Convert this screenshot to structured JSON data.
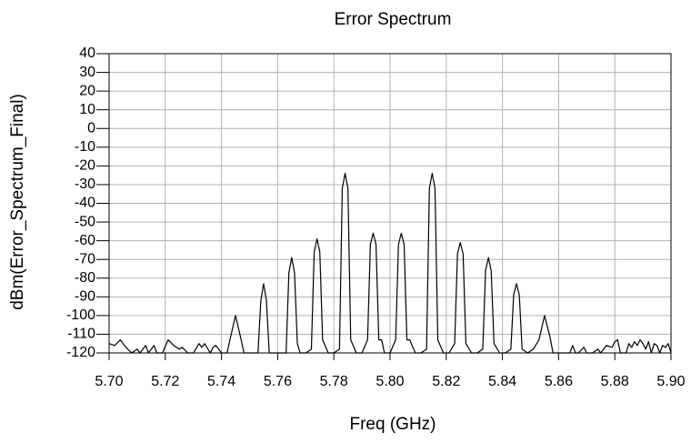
{
  "chart_data": {
    "type": "line",
    "title": "Error Spectrum",
    "x_label": "Freq (GHz)",
    "y_label": "dBm(Error_Spectrum_Final)",
    "xlim": [
      5.7,
      5.9
    ],
    "ylim": [
      -120,
      40
    ],
    "xticks": [
      {
        "value": 5.7,
        "label": "5.70"
      },
      {
        "value": 5.72,
        "label": "5.72"
      },
      {
        "value": 5.74,
        "label": "5.74"
      },
      {
        "value": 5.76,
        "label": "5.76"
      },
      {
        "value": 5.78,
        "label": "5.78"
      },
      {
        "value": 5.8,
        "label": "5.80"
      },
      {
        "value": 5.82,
        "label": "5.82"
      },
      {
        "value": 5.84,
        "label": "5.84"
      },
      {
        "value": 5.86,
        "label": "5.86"
      },
      {
        "value": 5.88,
        "label": "5.88"
      },
      {
        "value": 5.9,
        "label": "5.90"
      }
    ],
    "yticks": [
      40,
      30,
      20,
      10,
      0,
      -10,
      -20,
      -30,
      -40,
      -50,
      -60,
      -70,
      -80,
      -90,
      -100,
      -110,
      -120
    ],
    "grid": true,
    "color": "#000000",
    "x": [
      5.7,
      5.702,
      5.704,
      5.706,
      5.708,
      5.71,
      5.711,
      5.713,
      5.714,
      5.716,
      5.717,
      5.719,
      5.721,
      5.723,
      5.725,
      5.726,
      5.728,
      5.73,
      5.732,
      5.733,
      5.734,
      5.736,
      5.737,
      5.738,
      5.74,
      5.742,
      5.743,
      5.745,
      5.747,
      5.748,
      5.751,
      5.753,
      5.754,
      5.755,
      5.756,
      5.757,
      5.76,
      5.763,
      5.764,
      5.765,
      5.766,
      5.767,
      5.768,
      5.77,
      5.772,
      5.773,
      5.774,
      5.775,
      5.776,
      5.778,
      5.78,
      5.782,
      5.783,
      5.784,
      5.785,
      5.786,
      5.788,
      5.79,
      5.792,
      5.793,
      5.794,
      5.795,
      5.796,
      5.797,
      5.798,
      5.8,
      5.802,
      5.803,
      5.804,
      5.805,
      5.806,
      5.807,
      5.809,
      5.811,
      5.813,
      5.814,
      5.815,
      5.816,
      5.817,
      5.819,
      5.821,
      5.823,
      5.824,
      5.825,
      5.826,
      5.827,
      5.829,
      5.831,
      5.833,
      5.834,
      5.835,
      5.836,
      5.837,
      5.839,
      5.841,
      5.843,
      5.844,
      5.845,
      5.846,
      5.847,
      5.849,
      5.851,
      5.853,
      5.855,
      5.857,
      5.858,
      5.861,
      5.864,
      5.865,
      5.866,
      5.867,
      5.869,
      5.87,
      5.872,
      5.874,
      5.875,
      5.877,
      5.879,
      5.88,
      5.881,
      5.882,
      5.884,
      5.885,
      5.886,
      5.887,
      5.888,
      5.889,
      5.89,
      5.891,
      5.892,
      5.893,
      5.894,
      5.895,
      5.896,
      5.897,
      5.898,
      5.899,
      5.9
    ],
    "values": [
      -115,
      -116,
      -113,
      -117,
      -120,
      -118,
      -120,
      -116,
      -120,
      -116,
      -120,
      -120,
      -113,
      -116,
      -118,
      -117,
      -120,
      -120,
      -115,
      -117,
      -115,
      -120,
      -117,
      -116,
      -120,
      -120,
      -113,
      -100,
      -113,
      -120,
      -120,
      -120,
      -92,
      -83,
      -92,
      -120,
      -120,
      -120,
      -77,
      -69,
      -77,
      -115,
      -120,
      -120,
      -118,
      -66,
      -59,
      -66,
      -113,
      -120,
      -120,
      -118,
      -32,
      -24,
      -32,
      -113,
      -120,
      -120,
      -113,
      -62,
      -56,
      -62,
      -113,
      -113,
      -120,
      -120,
      -113,
      -62,
      -56,
      -62,
      -113,
      -113,
      -120,
      -120,
      -118,
      -32,
      -24,
      -32,
      -113,
      -120,
      -120,
      -115,
      -67,
      -61,
      -67,
      -115,
      -120,
      -120,
      -118,
      -76,
      -69,
      -76,
      -115,
      -120,
      -120,
      -118,
      -89,
      -83,
      -89,
      -118,
      -120,
      -118,
      -113,
      -100,
      -112,
      -120,
      -120,
      -120,
      -116,
      -120,
      -120,
      -117,
      -120,
      -120,
      -118,
      -120,
      -116,
      -117,
      -114,
      -113,
      -120,
      -120,
      -115,
      -117,
      -114,
      -116,
      -113,
      -115,
      -118,
      -114,
      -120,
      -115,
      -116,
      -120,
      -116,
      -117,
      -115,
      -120
    ]
  }
}
